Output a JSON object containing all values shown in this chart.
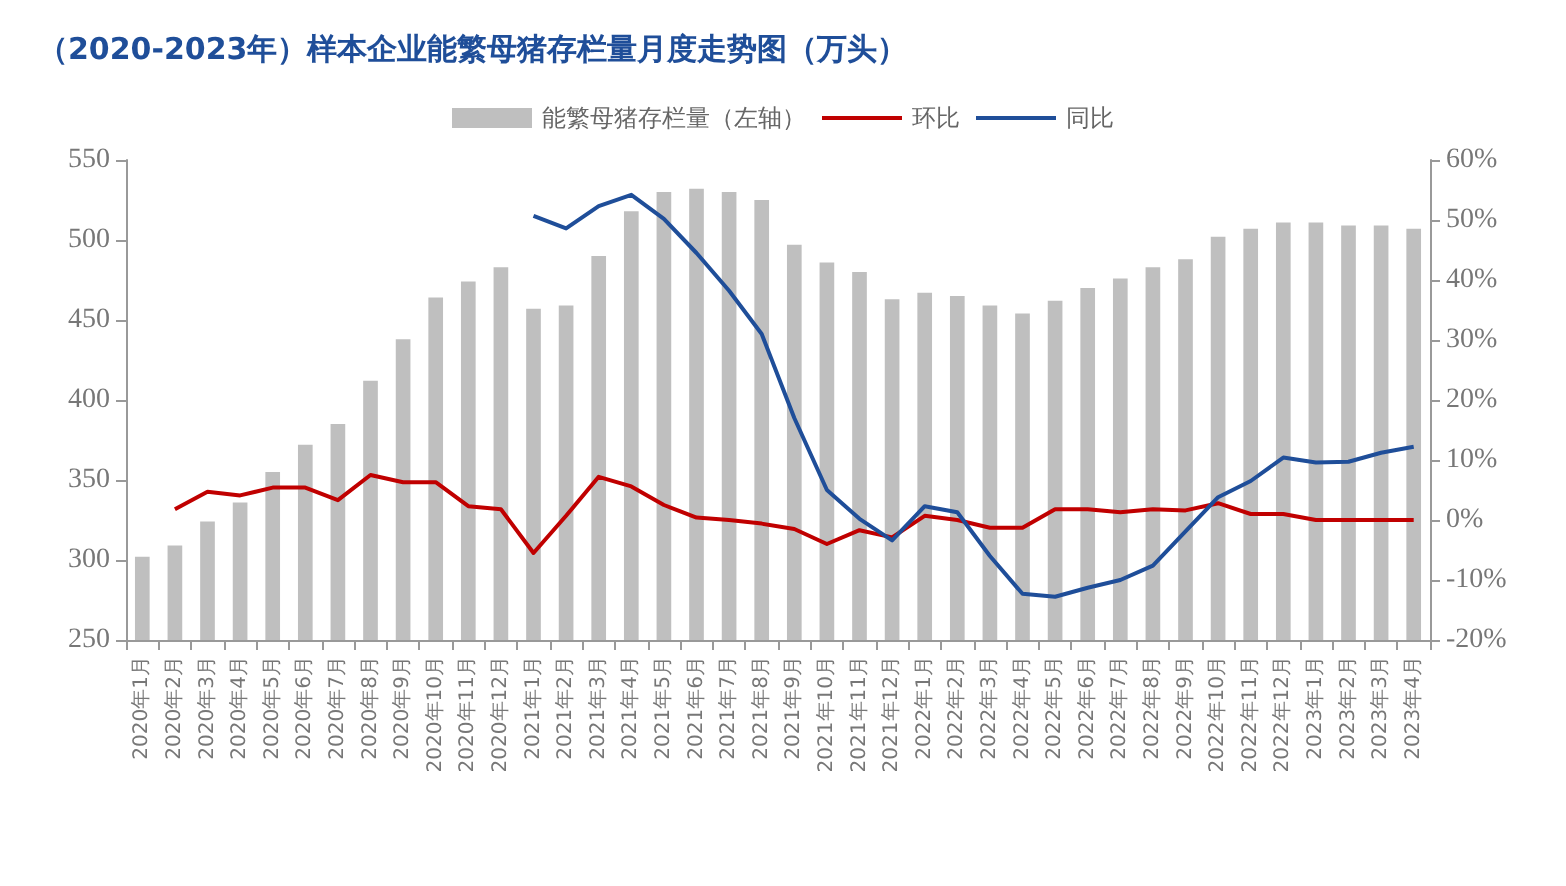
{
  "chart_data": {
    "type": "bar",
    "title": "（2020-2023年）样本企业能繁母猪存栏量月度走势图（万头）",
    "categories": [
      "2020年1月",
      "2020年2月",
      "2020年3月",
      "2020年4月",
      "2020年5月",
      "2020年6月",
      "2020年7月",
      "2020年8月",
      "2020年9月",
      "2020年10月",
      "2020年11月",
      "2020年12月",
      "2021年1月",
      "2021年2月",
      "2021年3月",
      "2021年4月",
      "2021年5月",
      "2021年6月",
      "2021年7月",
      "2021年8月",
      "2021年9月",
      "2021年10月",
      "2021年11月",
      "2021年12月",
      "2022年1月",
      "2022年2月",
      "2022年3月",
      "2022年4月",
      "2022年5月",
      "2022年6月",
      "2022年7月",
      "2022年8月",
      "2022年9月",
      "2022年10月",
      "2022年11月",
      "2022年12月",
      "2023年1月",
      "2023年2月",
      "2023年3月",
      "2023年4月"
    ],
    "series": [
      {
        "name": "能繁母猪存栏量（左轴）",
        "color": "#bfbfbf",
        "values": [
          302,
          309,
          324,
          336,
          355,
          372,
          385,
          412,
          438,
          464,
          474,
          483,
          457,
          459,
          490,
          518,
          530,
          532,
          530,
          525,
          497,
          486,
          480,
          463,
          467,
          465,
          459,
          454,
          462,
          470,
          476,
          483,
          488,
          502,
          507,
          511,
          511,
          509,
          509,
          507
        ]
      },
      {
        "name": "环比",
        "type": "line",
        "axis": "y2",
        "color": "#c00000",
        "values": [
          null,
          1.8,
          4.7,
          4.1,
          5.4,
          5.4,
          3.3,
          7.5,
          6.3,
          6.3,
          2.3,
          1.8,
          -5.5,
          0.7,
          7.2,
          5.6,
          2.5,
          0.4,
          0,
          -0.6,
          -1.5,
          -4,
          -1.7,
          -2.9,
          0.7,
          0,
          -1.3,
          -1.3,
          1.8,
          1.8,
          1.3,
          1.8,
          1.6,
          2.8,
          1.0,
          1.0,
          0,
          0,
          0,
          0
        ]
      },
      {
        "name": "同比",
        "type": "line",
        "axis": "y2",
        "color": "#1f4e99",
        "values": [
          null,
          null,
          null,
          null,
          null,
          null,
          null,
          null,
          null,
          null,
          null,
          null,
          50.7,
          48.6,
          52.3,
          54.2,
          50.2,
          44.5,
          38.2,
          31,
          17,
          5,
          0.2,
          -3.4,
          2.3,
          1.3,
          -6,
          -12.3,
          -12.8,
          -11.3,
          -10,
          -7.6,
          -1.9,
          3.8,
          6.5,
          10.4,
          9.6,
          9.7,
          11.2,
          12.2
        ]
      }
    ],
    "ylim": [
      250,
      550
    ],
    "yticks": [
      250,
      300,
      350,
      400,
      450,
      500,
      550
    ],
    "y2lim": [
      -20,
      60
    ],
    "y2ticks": [
      {
        "value": -20,
        "label": "-20%"
      },
      {
        "value": -10,
        "label": "-10%"
      },
      {
        "value": 0,
        "label": "0%"
      },
      {
        "value": 10,
        "label": "10%"
      },
      {
        "value": 20,
        "label": "20%"
      },
      {
        "value": 30,
        "label": "30%"
      },
      {
        "value": 40,
        "label": "40%"
      },
      {
        "value": 50,
        "label": "50%"
      },
      {
        "value": 60,
        "label": "60%"
      }
    ],
    "legend": "top",
    "marker": "none",
    "grid": false
  }
}
